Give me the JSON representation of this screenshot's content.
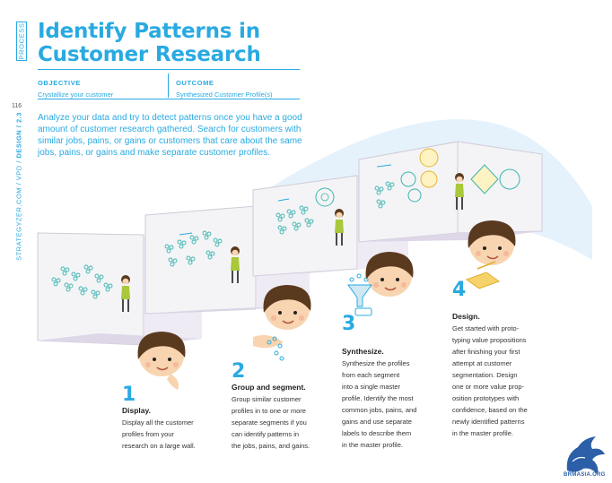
{
  "process_tab": "PROCESS",
  "title_line1": "Identify Patterns in",
  "title_line2": "Customer Research",
  "objective": {
    "label": "OBJECTIVE",
    "value": "Crystallize your customer"
  },
  "outcome": {
    "label": "OUTCOME",
    "value": "Synthesized Customer Profile(s)"
  },
  "page_number": "116",
  "side": {
    "prefix": "STRATEGYZER.COM / VPD / ",
    "section": "DESIGN / 2.3"
  },
  "intro": "Analyze your data and try to detect patterns once you have a good amount of customer research gathered. Search for customers with similar jobs, pains, or gains or customers that care about the same jobs, pains, or gains and make separate customer profiles.",
  "steps": [
    {
      "num": "1",
      "title": "Display.",
      "lines": [
        "Display all the customer",
        "profiles from your",
        "research on a large wall."
      ]
    },
    {
      "num": "2",
      "title": "Group and segment.",
      "lines": [
        "Group similar customer",
        "profiles in to one or more",
        "separate segments if you",
        "can identify patterns in",
        "the jobs, pains, and gains."
      ]
    },
    {
      "num": "3",
      "title": "Synthesize.",
      "lines": [
        "Synthesize the profiles",
        "from each segment",
        "into a single master",
        "profile. Identify the most",
        "common jobs, pains, and",
        "gains and use separate",
        "labels to describe them",
        "in the master profile."
      ]
    },
    {
      "num": "4",
      "title": "Design.",
      "lines": [
        "Get started with proto-",
        "typing value propositions",
        "after finishing your first",
        "attempt at customer",
        "segmentation. Design",
        "one or more value prop-",
        "osition prototypes with",
        "confidence, based on the",
        "newly identified patterns",
        "in the master profile."
      ]
    }
  ],
  "logo_text": "BRMASIA.ORG",
  "colors": {
    "accent": "#29aae1",
    "room": "#d8d3e6",
    "wall": "#f3f3f5",
    "shirt": "#a9c83a",
    "hair": "#5a3a1f",
    "skin": "#f8d4b0"
  }
}
